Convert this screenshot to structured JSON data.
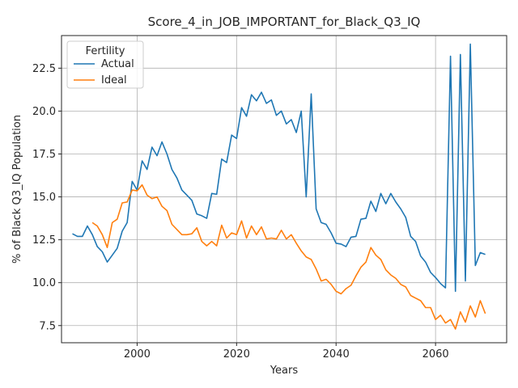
{
  "chart_data": {
    "type": "line",
    "title": "Score_4_in_JOB_IMPORTANT_for_Black_Q3_IQ",
    "xlabel": "Years",
    "ylabel": "% of Black Q3_IQ Population",
    "xlim": [
      1984.8,
      2074.3
    ],
    "ylim": [
      6.5,
      24.4
    ],
    "xticks": [
      2000,
      2020,
      2040,
      2060
    ],
    "yticks": [
      7.5,
      10.0,
      12.5,
      15.0,
      17.5,
      20.0,
      22.5
    ],
    "grid": true,
    "legend": {
      "title": "Fertility",
      "placement": "top-left"
    },
    "series": [
      {
        "name": "Actual",
        "color": "#1f77b4",
        "x": [
          1987,
          1988,
          1989,
          1990,
          1991,
          1992,
          1993,
          1994,
          1995,
          1996,
          1997,
          1998,
          1999,
          2000,
          2001,
          2002,
          2003,
          2004,
          2005,
          2006,
          2007,
          2008,
          2009,
          2010,
          2011,
          2012,
          2013,
          2014,
          2015,
          2016,
          2017,
          2018,
          2019,
          2020,
          2021,
          2022,
          2023,
          2024,
          2025,
          2026,
          2027,
          2028,
          2029,
          2030,
          2031,
          2032,
          2033,
          2034,
          2035,
          2036,
          2037,
          2038,
          2039,
          2040,
          2041,
          2042,
          2043,
          2044,
          2045,
          2046,
          2047,
          2048,
          2049,
          2050,
          2051,
          2052,
          2053,
          2054,
          2055,
          2056,
          2057,
          2058,
          2059,
          2060,
          2061,
          2062,
          2063,
          2064,
          2065,
          2066,
          2067,
          2068,
          2069,
          2070
        ],
        "values": [
          12.85,
          12.7,
          12.7,
          13.3,
          12.8,
          12.1,
          11.8,
          11.2,
          11.6,
          12.0,
          13.0,
          13.5,
          15.9,
          15.4,
          17.1,
          16.6,
          17.9,
          17.4,
          18.2,
          17.5,
          16.6,
          16.1,
          15.4,
          15.1,
          14.8,
          14.0,
          13.9,
          13.75,
          15.2,
          15.15,
          17.2,
          17.0,
          18.6,
          18.4,
          20.2,
          19.7,
          20.95,
          20.6,
          21.1,
          20.45,
          20.65,
          19.75,
          20.0,
          19.25,
          19.5,
          18.75,
          20.0,
          15.0,
          21.0,
          14.3,
          13.5,
          13.4,
          12.9,
          12.3,
          12.25,
          12.1,
          12.65,
          12.7,
          13.7,
          13.75,
          14.75,
          14.15,
          15.2,
          14.6,
          15.2,
          14.7,
          14.3,
          13.8,
          12.7,
          12.4,
          11.55,
          11.2,
          10.6,
          10.3,
          9.95,
          9.7,
          23.2,
          9.5,
          23.3,
          10.1,
          23.9,
          11.0,
          11.75,
          11.65
        ]
      },
      {
        "name": "Ideal",
        "color": "#ff7f0e",
        "x": [
          1991,
          1992,
          1993,
          1994,
          1995,
          1996,
          1997,
          1998,
          1999,
          2000,
          2001,
          2002,
          2003,
          2004,
          2005,
          2006,
          2007,
          2008,
          2009,
          2010,
          2011,
          2012,
          2013,
          2014,
          2015,
          2016,
          2017,
          2018,
          2019,
          2020,
          2021,
          2022,
          2023,
          2024,
          2025,
          2026,
          2027,
          2028,
          2029,
          2030,
          2031,
          2032,
          2033,
          2034,
          2035,
          2036,
          2037,
          2038,
          2039,
          2040,
          2041,
          2042,
          2043,
          2044,
          2045,
          2046,
          2047,
          2048,
          2049,
          2050,
          2051,
          2052,
          2053,
          2054,
          2055,
          2056,
          2057,
          2058,
          2059,
          2060,
          2061,
          2062,
          2063,
          2064,
          2065,
          2066,
          2067,
          2068,
          2069,
          2070
        ],
        "values": [
          13.5,
          13.3,
          12.8,
          12.05,
          13.5,
          13.7,
          14.65,
          14.7,
          15.4,
          15.35,
          15.7,
          15.1,
          14.9,
          15.0,
          14.45,
          14.2,
          13.4,
          13.1,
          12.8,
          12.8,
          12.85,
          13.2,
          12.4,
          12.15,
          12.4,
          12.15,
          13.35,
          12.6,
          12.9,
          12.8,
          13.6,
          12.6,
          13.3,
          12.8,
          13.25,
          12.55,
          12.6,
          12.55,
          13.05,
          12.55,
          12.8,
          12.3,
          11.85,
          11.5,
          11.35,
          10.8,
          10.1,
          10.2,
          9.9,
          9.5,
          9.35,
          9.65,
          9.85,
          10.4,
          10.9,
          11.2,
          12.05,
          11.6,
          11.35,
          10.75,
          10.45,
          10.25,
          9.9,
          9.75,
          9.25,
          9.1,
          8.95,
          8.55,
          8.55,
          7.85,
          8.1,
          7.65,
          7.85,
          7.3,
          8.3,
          7.7,
          8.65,
          8.0,
          8.95,
          8.2
        ]
      }
    ]
  }
}
